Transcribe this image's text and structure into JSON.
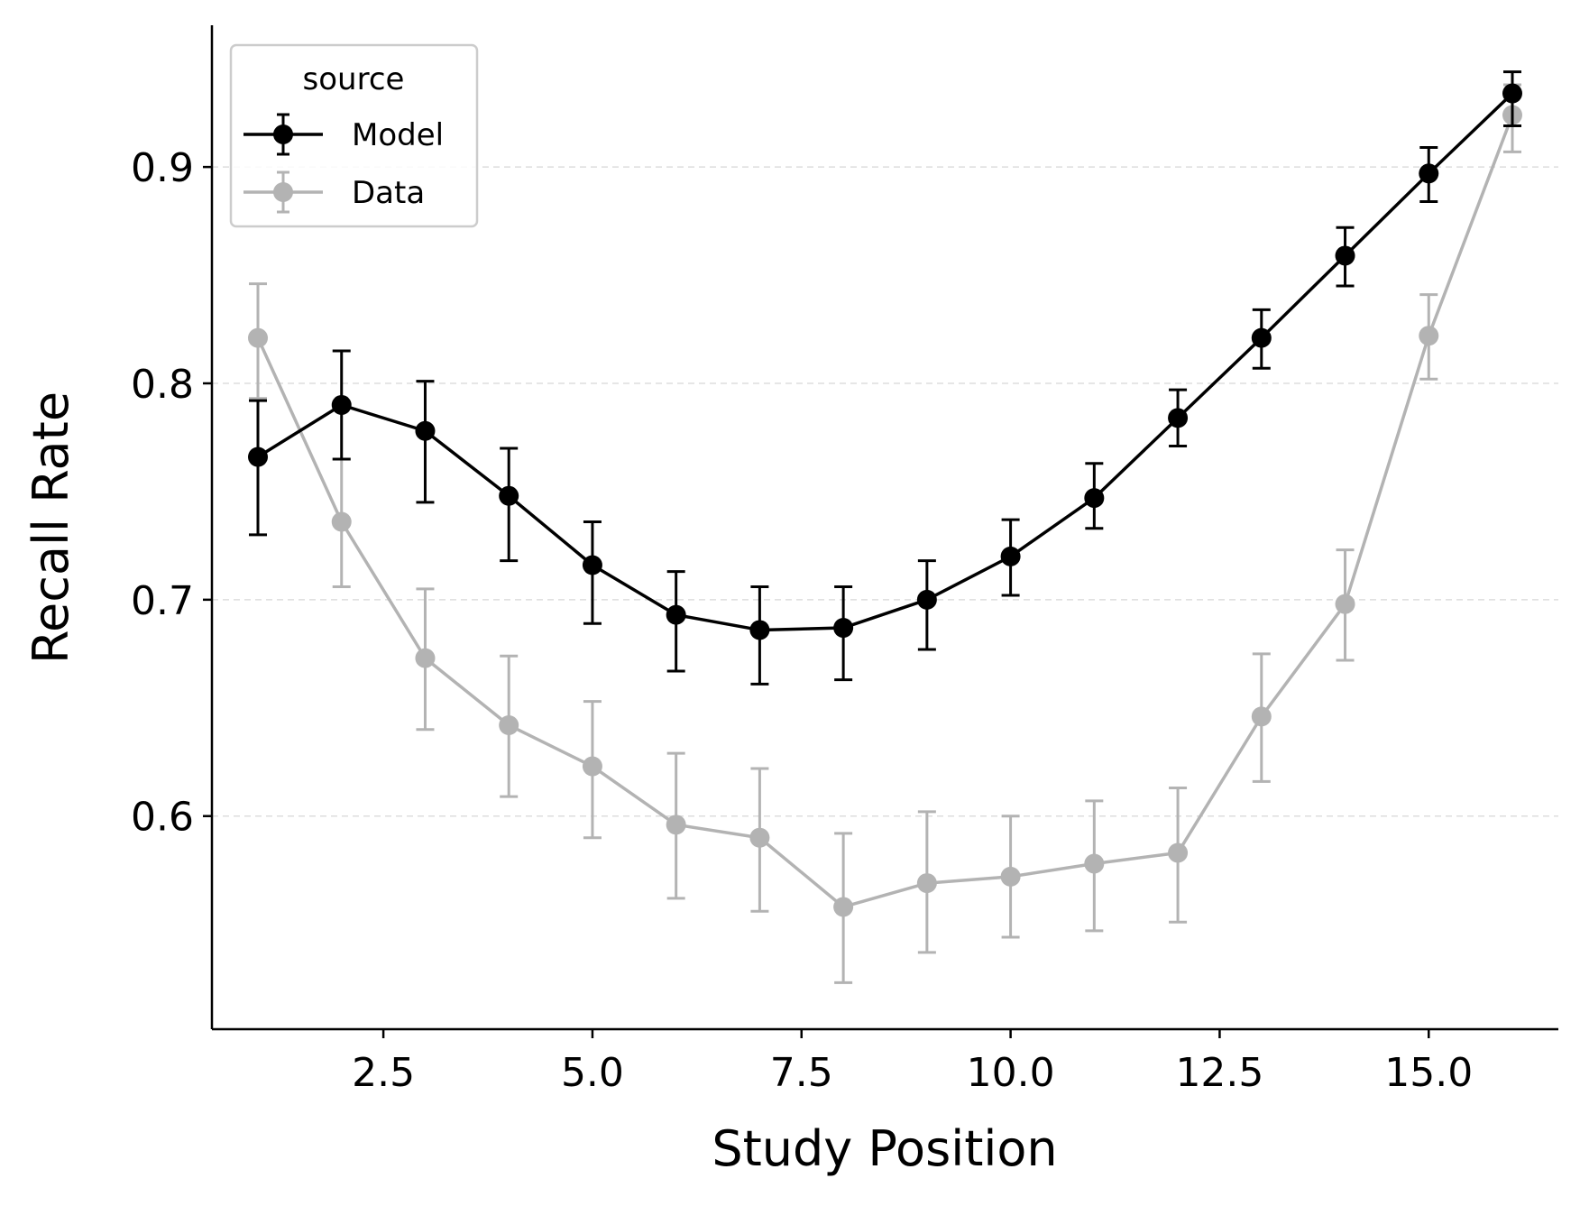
{
  "chart_data": {
    "type": "line",
    "title": "",
    "xlabel": "Study Position",
    "ylabel": "Recall Rate",
    "xlim": [
      0.45,
      16.55
    ],
    "ylim": [
      0.5015,
      0.9655
    ],
    "xticks": [
      2.5,
      5.0,
      7.5,
      10.0,
      12.5,
      15.0
    ],
    "xtick_labels": [
      "2.5",
      "5.0",
      "7.5",
      "10.0",
      "12.5",
      "15.0"
    ],
    "yticks": [
      0.6,
      0.7,
      0.8,
      0.9
    ],
    "ytick_labels": [
      "0.6",
      "0.7",
      "0.8",
      "0.9"
    ],
    "grid": "horizontal dashed",
    "legend": {
      "title": "source",
      "placement": "top-left"
    },
    "x": [
      1,
      2,
      3,
      4,
      5,
      6,
      7,
      8,
      9,
      10,
      11,
      12,
      13,
      14,
      15,
      16
    ],
    "series": [
      {
        "name": "Model",
        "color": "#000000",
        "values": [
          0.766,
          0.79,
          0.778,
          0.748,
          0.716,
          0.693,
          0.686,
          0.687,
          0.7,
          0.72,
          0.747,
          0.784,
          0.821,
          0.859,
          0.897,
          0.934
        ],
        "err_low": [
          0.73,
          0.765,
          0.745,
          0.718,
          0.689,
          0.667,
          0.661,
          0.663,
          0.677,
          0.702,
          0.733,
          0.771,
          0.807,
          0.845,
          0.884,
          0.919
        ],
        "err_high": [
          0.792,
          0.815,
          0.801,
          0.77,
          0.736,
          0.713,
          0.706,
          0.706,
          0.718,
          0.737,
          0.763,
          0.797,
          0.834,
          0.872,
          0.909,
          0.944
        ]
      },
      {
        "name": "Data",
        "color": "#b3b3b3",
        "values": [
          0.821,
          0.736,
          0.673,
          0.642,
          0.623,
          0.596,
          0.59,
          0.558,
          0.569,
          0.572,
          0.578,
          0.583,
          0.646,
          0.698,
          0.822,
          0.924
        ],
        "err_low": [
          0.793,
          0.706,
          0.64,
          0.609,
          0.59,
          0.562,
          0.556,
          0.523,
          0.537,
          0.544,
          0.547,
          0.551,
          0.616,
          0.672,
          0.802,
          0.907
        ],
        "err_high": [
          0.846,
          0.765,
          0.705,
          0.674,
          0.653,
          0.629,
          0.622,
          0.592,
          0.602,
          0.6,
          0.607,
          0.613,
          0.675,
          0.723,
          0.841,
          0.938
        ]
      }
    ]
  }
}
